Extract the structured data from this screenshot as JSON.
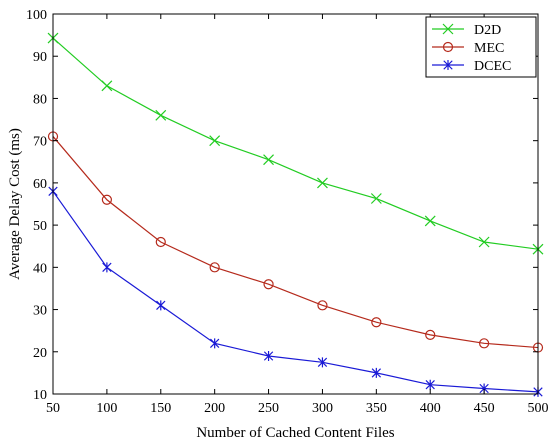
{
  "chart_data": {
    "type": "line",
    "title": "",
    "xlabel": "Number of Cached Content Files",
    "ylabel": "Average Delay Cost (ms)",
    "x": [
      50,
      100,
      150,
      200,
      250,
      300,
      350,
      400,
      450,
      500
    ],
    "xlim": [
      50,
      500
    ],
    "ylim": [
      10,
      100
    ],
    "xticks": [
      50,
      100,
      150,
      200,
      250,
      300,
      350,
      400,
      450,
      500
    ],
    "yticks": [
      10,
      20,
      30,
      40,
      50,
      60,
      70,
      80,
      90,
      100
    ],
    "grid": false,
    "legend_position": "top-right",
    "series": [
      {
        "name": "D2D",
        "color": "#22cc22",
        "marker": "x",
        "values": [
          94.3,
          83.0,
          76.0,
          70.0,
          65.5,
          60.0,
          56.3,
          51.0,
          46.0,
          44.3
        ]
      },
      {
        "name": "MEC",
        "color": "#b52a1c",
        "marker": "circle",
        "values": [
          71.0,
          56.0,
          46.0,
          40.0,
          36.0,
          31.0,
          27.0,
          24.0,
          22.0,
          21.0
        ]
      },
      {
        "name": "DCEC",
        "color": "#1a1ad6",
        "marker": "asterisk",
        "values": [
          58.0,
          40.0,
          31.0,
          22.0,
          19.0,
          17.5,
          15.0,
          12.2,
          11.3,
          10.5
        ]
      }
    ]
  }
}
